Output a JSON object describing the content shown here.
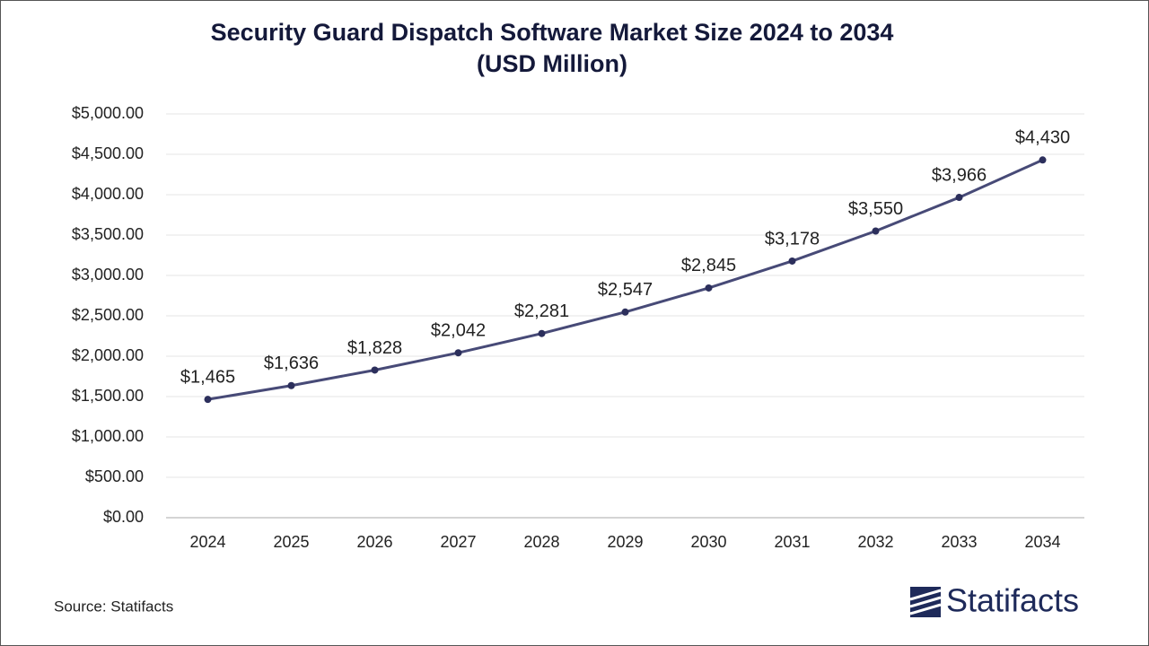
{
  "chart_data": {
    "type": "line",
    "title": "Security Guard Dispatch Software Market Size 2024 to 2034",
    "subtitle": "(USD Million)",
    "categories": [
      "2024",
      "2025",
      "2026",
      "2027",
      "2028",
      "2029",
      "2030",
      "2031",
      "2032",
      "2033",
      "2034"
    ],
    "series": [
      {
        "name": "Market Size",
        "color": "#474a77",
        "values": [
          1465,
          1636,
          1828,
          2042,
          2281,
          2547,
          2845,
          3178,
          3550,
          3966,
          4430
        ],
        "value_labels": [
          "$1,465",
          "$1,636",
          "$1,828",
          "$2,042",
          "$2,281",
          "$2,547",
          "$2,845",
          "$3,178",
          "$3,550",
          "$3,966",
          "$4,430"
        ]
      }
    ],
    "ylim": [
      0,
      5000
    ],
    "yticks": [
      {
        "value": 0,
        "label": "$0.00"
      },
      {
        "value": 500,
        "label": "$500.00"
      },
      {
        "value": 1000,
        "label": "$1,000.00"
      },
      {
        "value": 1500,
        "label": "$1,500.00"
      },
      {
        "value": 2000,
        "label": "$2,000.00"
      },
      {
        "value": 2500,
        "label": "$2,500.00"
      },
      {
        "value": 3000,
        "label": "$3,000.00"
      },
      {
        "value": 3500,
        "label": "$3,500.00"
      },
      {
        "value": 4000,
        "label": "$4,000.00"
      },
      {
        "value": 4500,
        "label": "$4,500.00"
      },
      {
        "value": 5000,
        "label": "$5,000.00"
      }
    ],
    "grid": true,
    "source": "Source: Statifacts",
    "logo": "Statifacts"
  }
}
